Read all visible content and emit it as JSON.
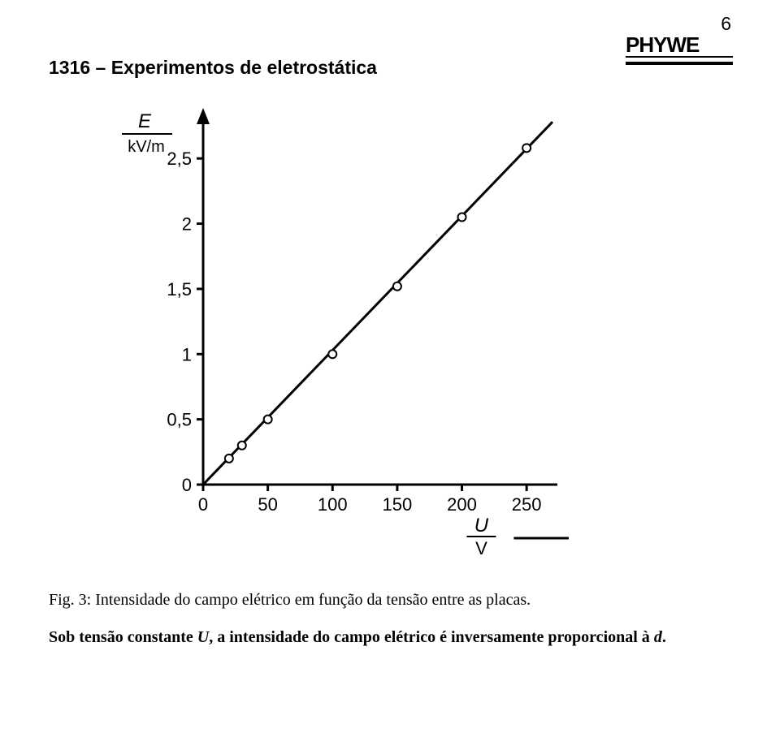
{
  "page_number": "6",
  "title": "1316 – Experimentos de eletrostática",
  "logo": {
    "text": "PHYWE",
    "text_color": "#000000"
  },
  "chart": {
    "type": "scatter-with-line",
    "background_color": "#ffffff",
    "axis_color": "#000000",
    "axis_width": 3,
    "y_axis": {
      "label_top": "E",
      "label_unit": "kV/m",
      "label_fontsize": 22,
      "ticks": [
        0,
        0.5,
        1,
        1.5,
        2,
        2.5
      ],
      "tick_labels": [
        "0",
        "0,5",
        "1",
        "1,5",
        "2",
        "2,5"
      ],
      "ylim": [
        0,
        2.8
      ]
    },
    "x_axis": {
      "label_top": "U",
      "label_unit": "V",
      "label_fontsize": 22,
      "ticks": [
        0,
        50,
        100,
        150,
        200,
        250
      ],
      "tick_labels": [
        "0",
        "50",
        "100",
        "150",
        "200",
        "250"
      ],
      "xlim": [
        0,
        270
      ]
    },
    "line": {
      "x1": 0,
      "y1": 0,
      "x2": 270,
      "y2": 2.78,
      "color": "#000000",
      "width": 3
    },
    "points": [
      {
        "x": 20,
        "y": 0.2
      },
      {
        "x": 30,
        "y": 0.3
      },
      {
        "x": 50,
        "y": 0.5
      },
      {
        "x": 100,
        "y": 1.0
      },
      {
        "x": 150,
        "y": 1.52
      },
      {
        "x": 200,
        "y": 2.05
      },
      {
        "x": 250,
        "y": 2.58
      }
    ],
    "marker": {
      "radius": 5,
      "stroke": "#000000",
      "stroke_width": 2,
      "fill": "#ffffff"
    }
  },
  "caption": "Fig. 3: Intensidade do campo elétrico em função da tensão entre as placas.",
  "body": {
    "prefix": "Sob tensão constante ",
    "var1": "U",
    "mid": ", a intensidade do campo elétrico é inversamente proporcional à ",
    "var2": "d",
    "suffix": "."
  }
}
